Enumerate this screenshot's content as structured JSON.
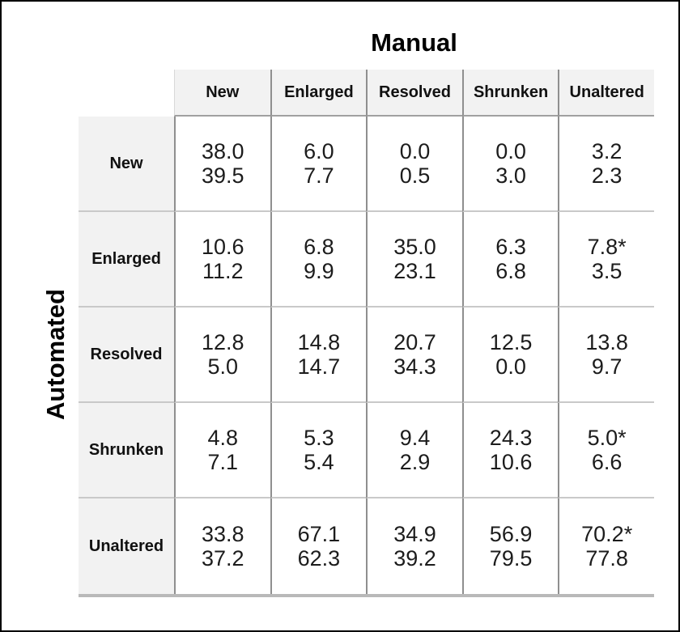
{
  "chart_data": {
    "type": "table",
    "title_columns": "Manual",
    "title_rows": "Automated",
    "col_headers": [
      "New",
      "Enlarged",
      "Resolved",
      "Shrunken",
      "Unaltered"
    ],
    "row_headers": [
      "New",
      "Enlarged",
      "Resolved",
      "Shrunken",
      "Unaltered"
    ],
    "rows": [
      {
        "label": "New",
        "cells": [
          [
            "38.0",
            "39.5"
          ],
          [
            "6.0",
            "7.7"
          ],
          [
            "0.0",
            "0.5"
          ],
          [
            "0.0",
            "3.0"
          ],
          [
            "3.2",
            "2.3"
          ]
        ]
      },
      {
        "label": "Enlarged",
        "cells": [
          [
            "10.6",
            "11.2"
          ],
          [
            "6.8",
            "9.9"
          ],
          [
            "35.0",
            "23.1"
          ],
          [
            "6.3",
            "6.8"
          ],
          [
            "7.8*",
            "3.5"
          ]
        ]
      },
      {
        "label": "Resolved",
        "cells": [
          [
            "12.8",
            "5.0"
          ],
          [
            "14.8",
            "14.7"
          ],
          [
            "20.7",
            "34.3"
          ],
          [
            "12.5",
            "0.0"
          ],
          [
            "13.8",
            "9.7"
          ]
        ]
      },
      {
        "label": "Shrunken",
        "cells": [
          [
            "4.8",
            "7.1"
          ],
          [
            "5.3",
            "5.4"
          ],
          [
            "9.4",
            "2.9"
          ],
          [
            "24.3",
            "10.6"
          ],
          [
            "5.0*",
            "6.6"
          ]
        ]
      },
      {
        "label": "Unaltered",
        "cells": [
          [
            "33.8",
            "37.2"
          ],
          [
            "67.1",
            "62.3"
          ],
          [
            "34.9",
            "39.2"
          ],
          [
            "56.9",
            "79.5"
          ],
          [
            "70.2*",
            "77.8"
          ]
        ]
      }
    ]
  }
}
